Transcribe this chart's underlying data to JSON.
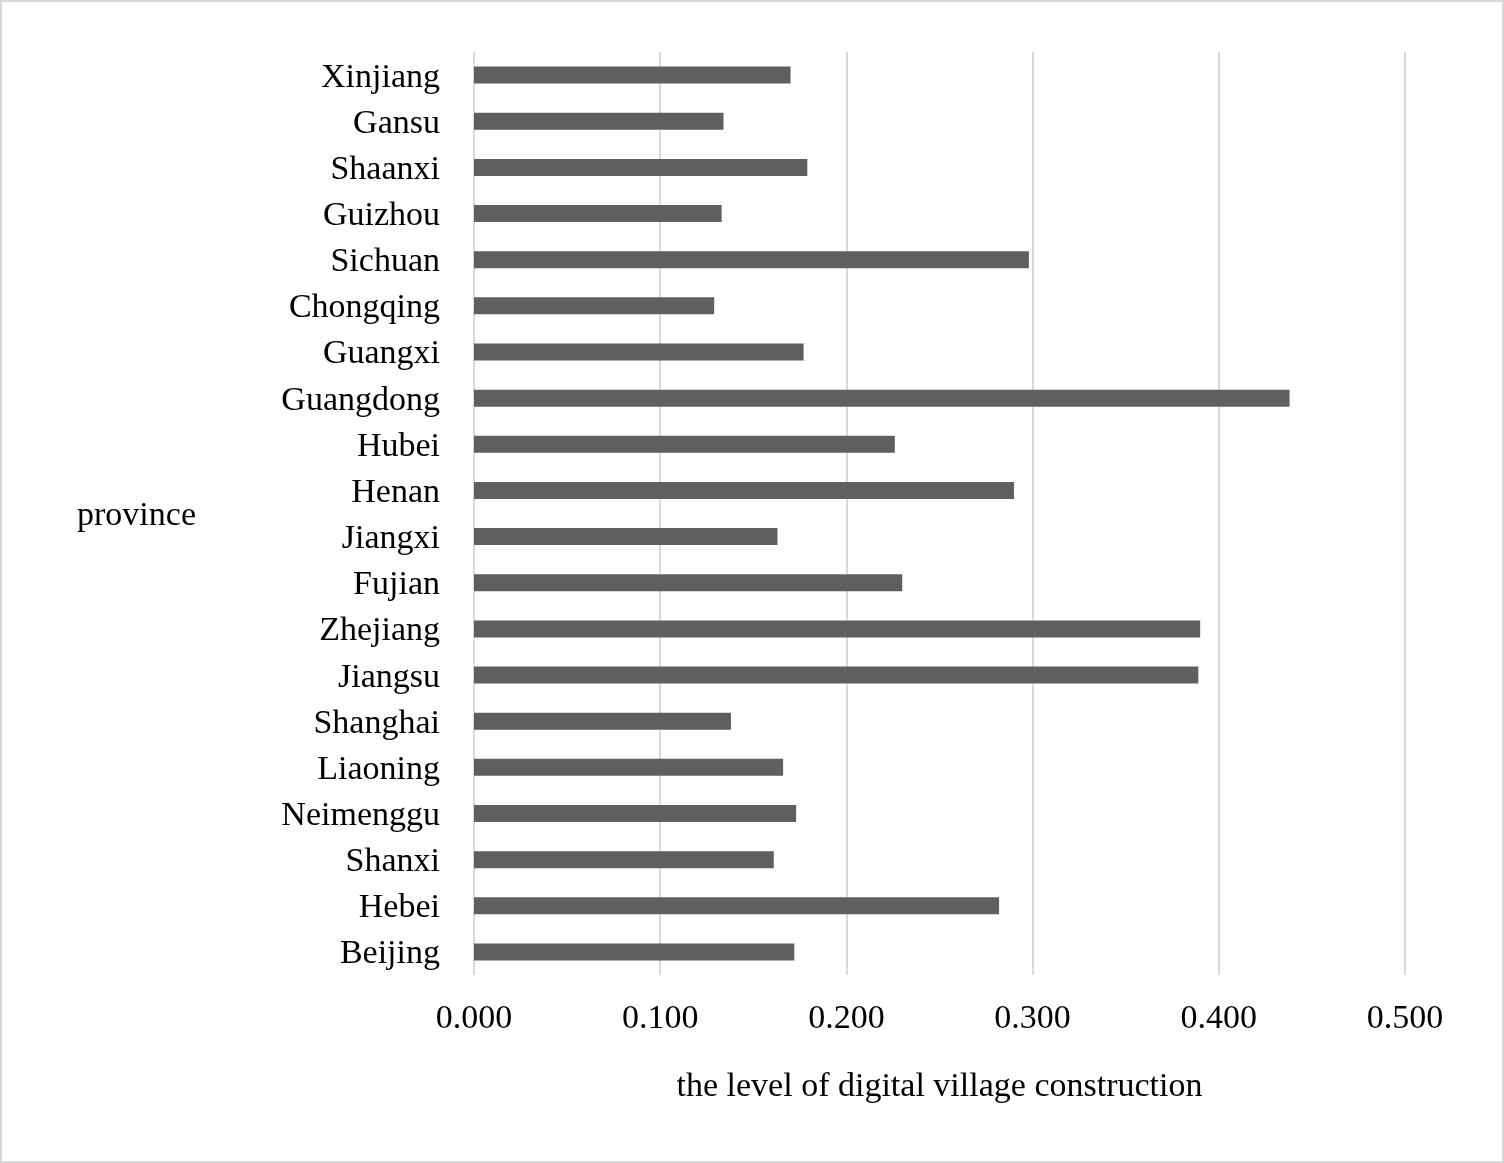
{
  "chart_data": {
    "type": "bar",
    "orientation": "horizontal",
    "xlabel": "the level of digital village construction",
    "ylabel": "province",
    "categories": [
      "Xinjiang",
      "Gansu",
      "Shaanxi",
      "Guizhou",
      "Sichuan",
      "Chongqing",
      "Guangxi",
      "Guangdong",
      "Hubei",
      "Henan",
      "Jiangxi",
      "Fujian",
      "Zhejiang",
      "Jiangsu",
      "Shanghai",
      "Liaoning",
      "Neimenggu",
      "Shanxi",
      "Hebei",
      "Beijing"
    ],
    "values": [
      0.17,
      0.134,
      0.179,
      0.133,
      0.298,
      0.129,
      0.177,
      0.438,
      0.226,
      0.29,
      0.163,
      0.23,
      0.39,
      0.389,
      0.138,
      0.166,
      0.173,
      0.161,
      0.282,
      0.172
    ],
    "color": "#5f5f5f",
    "xlim": [
      0,
      0.5
    ],
    "xticks": [
      {
        "value": 0,
        "label": "0.000"
      },
      {
        "value": 0.1,
        "label": "0.100"
      },
      {
        "value": 0.2,
        "label": "0.200"
      },
      {
        "value": 0.3,
        "label": "0.300"
      },
      {
        "value": 0.4,
        "label": "0.400"
      },
      {
        "value": 0.5,
        "label": "0.500"
      }
    ],
    "grid": "x"
  }
}
